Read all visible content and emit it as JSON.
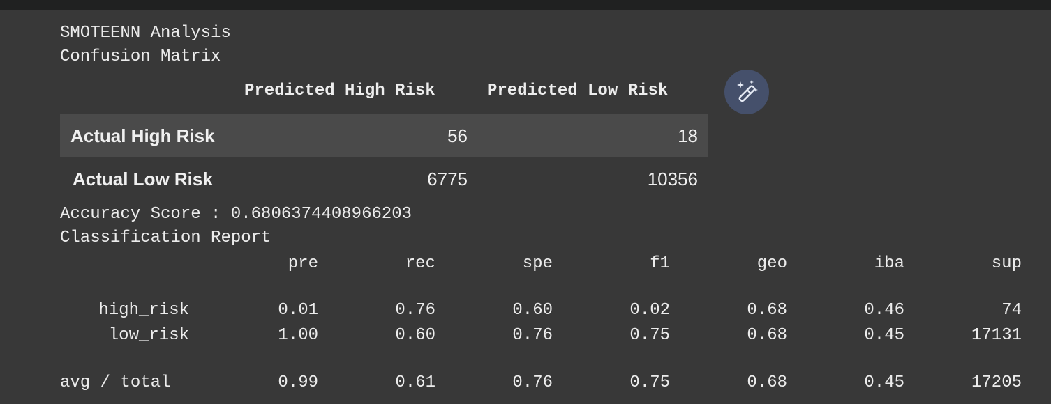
{
  "output": {
    "title_line": "SMOTEENN Analysis",
    "matrix_heading": "Confusion Matrix",
    "accuracy_line": "Accuracy Score : 0.6806374408966203",
    "report_heading": "Classification Report"
  },
  "confusion_matrix": {
    "columns": [
      "Predicted High Risk",
      "Predicted Low Risk"
    ],
    "rows": [
      {
        "label": "Actual High Risk",
        "values": [
          "56",
          "18"
        ]
      },
      {
        "label": "Actual Low Risk",
        "values": [
          "6775",
          "10356"
        ]
      }
    ]
  },
  "toolbar": {
    "wand_icon": "magic-wand-icon",
    "wand_bg": "#45506b"
  },
  "report": {
    "columns": [
      "pre",
      "rec",
      "spe",
      "f1",
      "geo",
      "iba",
      "sup"
    ],
    "rows": [
      {
        "label": "high_risk",
        "values": [
          "0.01",
          "0.76",
          "0.60",
          "0.02",
          "0.68",
          "0.46",
          "74"
        ]
      },
      {
        "label": "low_risk",
        "values": [
          "1.00",
          "0.60",
          "0.76",
          "0.75",
          "0.68",
          "0.45",
          "17131"
        ]
      },
      {
        "label": "avg / total",
        "values": [
          "0.99",
          "0.61",
          "0.76",
          "0.75",
          "0.68",
          "0.45",
          "17205"
        ]
      }
    ]
  },
  "colors": {
    "background": "#383838",
    "topbar": "#202121",
    "stripe": "#4a4a4a",
    "text": "#ececec"
  }
}
